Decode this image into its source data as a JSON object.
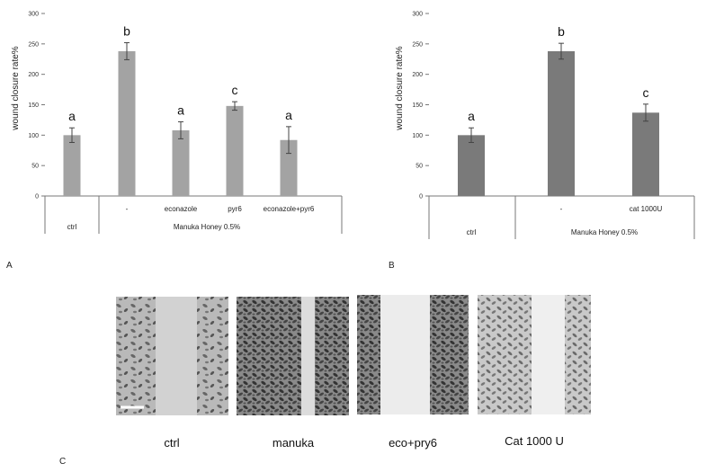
{
  "chart_data": [
    {
      "panel_label": "A",
      "type": "bar",
      "ylabel": "wound closure rate%",
      "ylim": [
        0,
        300
      ],
      "yticks": [
        "0",
        "50",
        "100",
        "150",
        "200",
        "250",
        "300"
      ],
      "color": "#a3a3a3",
      "categories": [
        "ctrl",
        "-",
        "econazole",
        "pyr6",
        "econazole+pyr6"
      ],
      "values": [
        100,
        238,
        108,
        148,
        92
      ],
      "errors": [
        12,
        14,
        14,
        7,
        22
      ],
      "letters": [
        "a",
        "b",
        "a",
        "c",
        "a"
      ],
      "group_label": "Manuka  Honey 0.5%"
    },
    {
      "panel_label": "B",
      "type": "bar",
      "ylabel": "wound closure rate%",
      "ylim": [
        0,
        300
      ],
      "yticks": [
        "0",
        "50",
        "100",
        "150",
        "200",
        "250",
        "300"
      ],
      "color": "#7a7a7a",
      "categories": [
        "ctrl",
        "-",
        "cat 1000U"
      ],
      "values": [
        100,
        238,
        137
      ],
      "errors": [
        12,
        13,
        14
      ],
      "letters": [
        "a",
        "b",
        "c"
      ],
      "group_label": "Manuka  Honey 0.5%"
    }
  ],
  "micrographs": {
    "panel_label": "C",
    "captions": [
      "ctrl",
      "manuka",
      "eco+pry6",
      "Cat 1000 U"
    ]
  }
}
